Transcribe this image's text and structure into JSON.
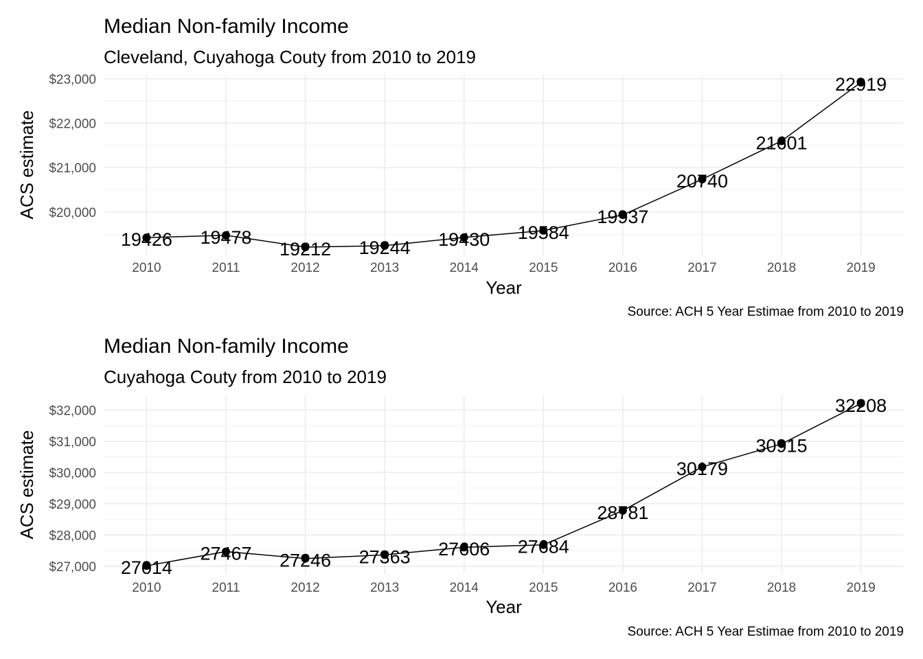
{
  "chart_data": [
    {
      "type": "line",
      "title": "Median Non-family Income",
      "subtitle": "Cleveland, Cuyahoga Couty from 2010 to 2019",
      "xlabel": "Year",
      "ylabel": "ACS estimate",
      "caption": "Source: ACH 5 Year Estimae from 2010 to 2019",
      "x": [
        2010,
        2011,
        2012,
        2013,
        2014,
        2015,
        2016,
        2017,
        2018,
        2019
      ],
      "x_tick_labels": [
        "2010",
        "2011",
        "2012",
        "2013",
        "2014",
        "2015",
        "2016",
        "2017",
        "2018",
        "2019"
      ],
      "values": [
        19426,
        19478,
        19212,
        19244,
        19430,
        19584,
        19937,
        20740,
        21601,
        22919
      ],
      "data_labels": [
        "19426",
        "19478",
        "19212",
        "19244",
        "19430",
        "19584",
        "19937",
        "20740",
        "21601",
        "22919"
      ],
      "y_ticks": [
        20000,
        21000,
        22000,
        23000
      ],
      "y_tick_labels": [
        "$20,000",
        "$21,000",
        "$22,000",
        "$23,000"
      ],
      "ylim": [
        19212,
        22919
      ],
      "grid": true,
      "legend": "none"
    },
    {
      "type": "line",
      "title": "Median Non-family Income",
      "subtitle": "Cuyahoga Couty from 2010 to 2019",
      "xlabel": "Year",
      "ylabel": "ACS estimate",
      "caption": "Source: ACH 5 Year Estimae from 2010 to 2019",
      "x": [
        2010,
        2011,
        2012,
        2013,
        2014,
        2015,
        2016,
        2017,
        2018,
        2019
      ],
      "x_tick_labels": [
        "2010",
        "2011",
        "2012",
        "2013",
        "2014",
        "2015",
        "2016",
        "2017",
        "2018",
        "2019"
      ],
      "values": [
        27014,
        27467,
        27246,
        27363,
        27606,
        27684,
        28781,
        30179,
        30915,
        32208
      ],
      "data_labels": [
        "27014",
        "27467",
        "27246",
        "27363",
        "27606",
        "27684",
        "28781",
        "30179",
        "30915",
        "32208"
      ],
      "y_ticks": [
        27000,
        28000,
        29000,
        30000,
        31000,
        32000
      ],
      "y_tick_labels": [
        "$27,000",
        "$28,000",
        "$29,000",
        "$30,000",
        "$31,000",
        "$32,000"
      ],
      "ylim": [
        27014,
        32208
      ],
      "grid": true,
      "legend": "none"
    }
  ]
}
